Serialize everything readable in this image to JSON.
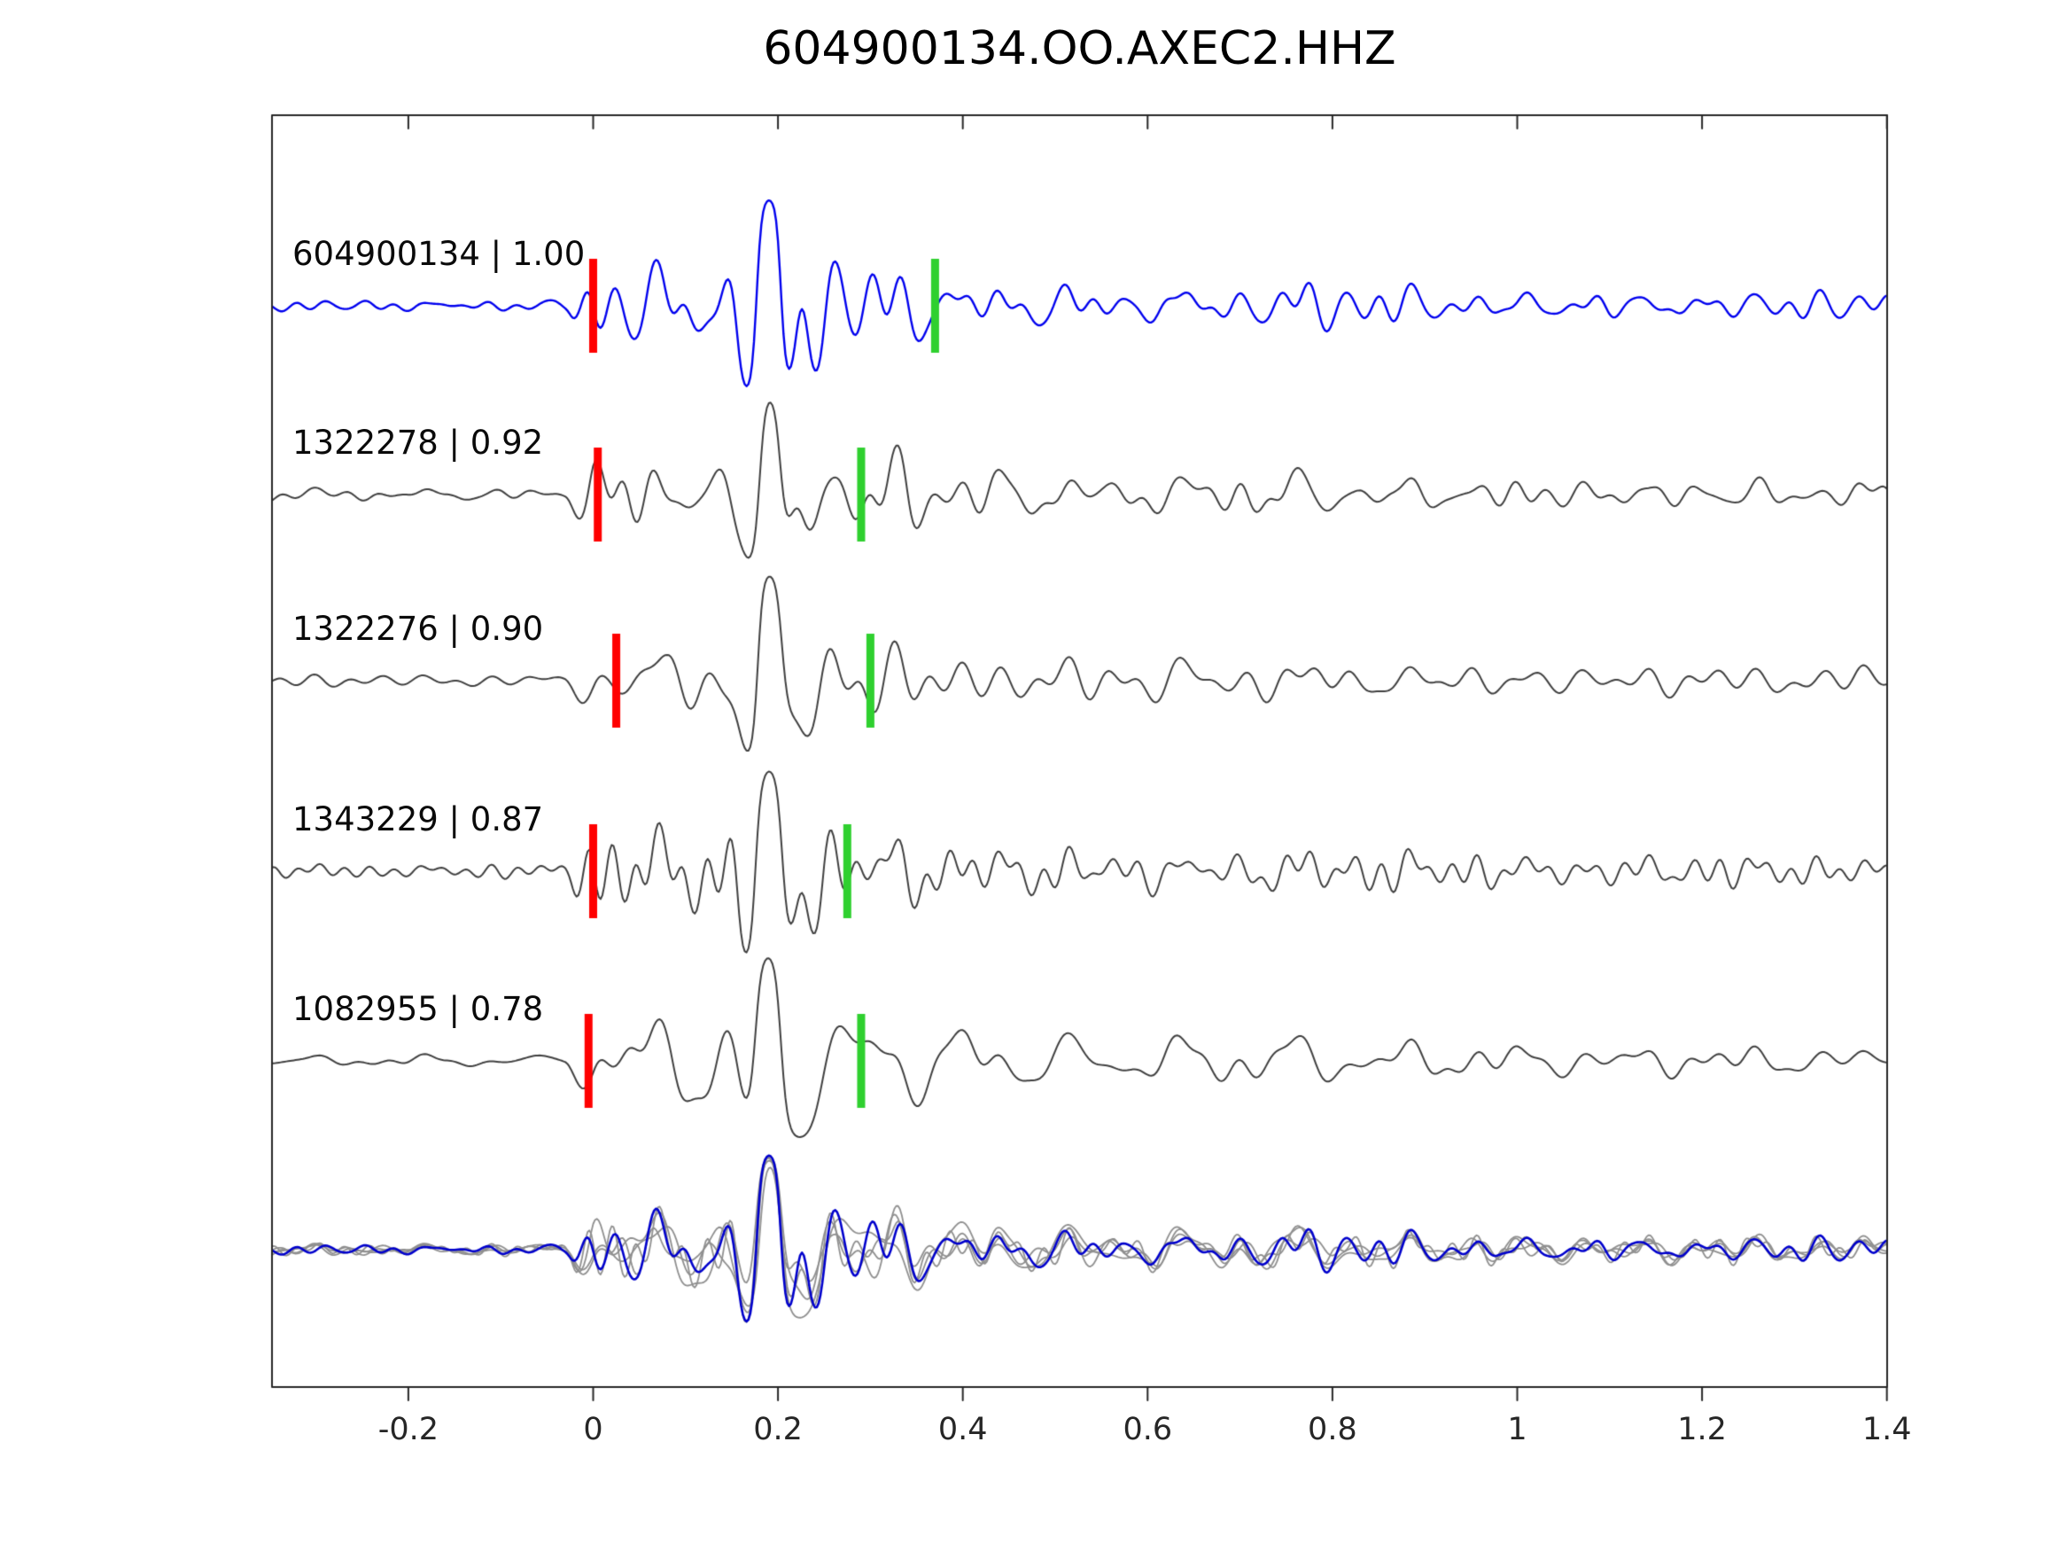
{
  "title": "604900134.OO.AXEC2.HHZ",
  "axis_color": "#262626",
  "chart_data": {
    "type": "line",
    "title": "604900134.OO.AXEC2.HHZ",
    "xlabel": "",
    "ylabel": "",
    "xlim": [
      -0.348,
      1.402
    ],
    "grid": false,
    "legend": "none",
    "x_ticks": [
      -0.2,
      0,
      0.2,
      0.4,
      0.6,
      0.8,
      1,
      1.2,
      1.4
    ],
    "x_tick_labels": [
      "-0.2",
      "0",
      "0.2",
      "0.4",
      "0.6",
      "0.8",
      "1",
      "1.2",
      "1.4"
    ],
    "traces": [
      {
        "id": "604900134",
        "similarity": 1.0,
        "label": "604900134 | 1.00",
        "color": "#0000ee",
        "red_pick_x": 0.0,
        "green_pick_x": 0.37,
        "seed": 11
      },
      {
        "id": "1322278",
        "similarity": 0.92,
        "label": "1322278 | 0.92",
        "color": "#3f3f3f",
        "red_pick_x": 0.005,
        "green_pick_x": 0.29,
        "seed": 23
      },
      {
        "id": "1322276",
        "similarity": 0.9,
        "label": "1322276 | 0.90",
        "color": "#3f3f3f",
        "red_pick_x": 0.025,
        "green_pick_x": 0.3,
        "seed": 37
      },
      {
        "id": "1343229",
        "similarity": 0.87,
        "label": "1343229 | 0.87",
        "color": "#3f3f3f",
        "red_pick_x": 0.0,
        "green_pick_x": 0.275,
        "seed": 41
      },
      {
        "id": "1082955",
        "similarity": 0.78,
        "label": "1082955 | 0.78",
        "color": "#3f3f3f",
        "red_pick_x": -0.005,
        "green_pick_x": 0.29,
        "seed": 53
      }
    ],
    "overlay_row": {
      "description": "all five traces overlaid, aligned on pick",
      "gray_color": "#8f8f8f",
      "highlight_color": "#0000cc"
    },
    "pick_colors": {
      "red": "#ff0000",
      "green": "#2fd02f"
    },
    "amplitude_envelope": [
      [
        -0.35,
        0.05
      ],
      [
        -0.03,
        0.05
      ],
      [
        0.0,
        0.5
      ],
      [
        0.04,
        0.55
      ],
      [
        0.08,
        0.45
      ],
      [
        0.13,
        0.6
      ],
      [
        0.165,
        0.8
      ],
      [
        0.19,
        1.0
      ],
      [
        0.215,
        0.85
      ],
      [
        0.25,
        0.6
      ],
      [
        0.3,
        0.5
      ],
      [
        0.36,
        0.38
      ],
      [
        0.45,
        0.28
      ],
      [
        0.6,
        0.22
      ],
      [
        0.75,
        0.28
      ],
      [
        0.9,
        0.2
      ],
      [
        1.1,
        0.18
      ],
      [
        1.4,
        0.16
      ]
    ]
  }
}
